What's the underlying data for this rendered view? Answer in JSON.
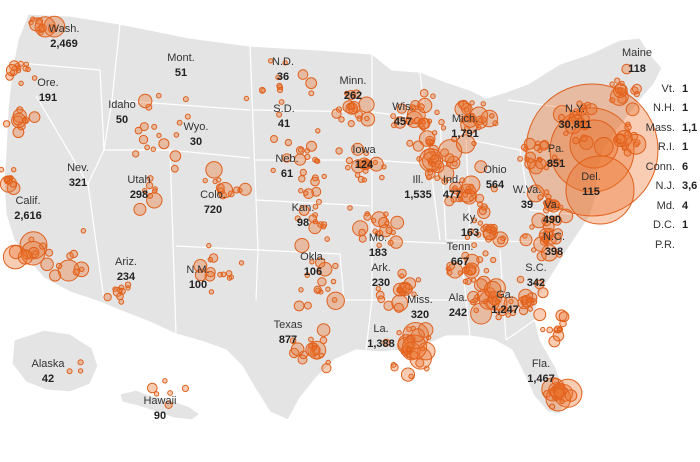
{
  "colors": {
    "land": "#e4e4e4",
    "bubble_fill": "#f07a2e",
    "bubble_stroke": "#e0601c",
    "text": "#222222"
  },
  "states": [
    {
      "id": "wa",
      "name": "Wash.",
      "value": "2,469"
    },
    {
      "id": "or",
      "name": "Ore.",
      "value": "191"
    },
    {
      "id": "ca",
      "name": "Calif.",
      "value": "2,616"
    },
    {
      "id": "nv",
      "name": "Nev.",
      "value": "321"
    },
    {
      "id": "id",
      "name": "Idaho",
      "value": "50"
    },
    {
      "id": "mt",
      "name": "Mont.",
      "value": "51"
    },
    {
      "id": "wy",
      "name": "Wyo.",
      "value": "30"
    },
    {
      "id": "ut",
      "name": "Utah",
      "value": "298"
    },
    {
      "id": "co",
      "name": "Colo.",
      "value": "720"
    },
    {
      "id": "az",
      "name": "Ariz.",
      "value": "234"
    },
    {
      "id": "nm",
      "name": "N.M.",
      "value": "100"
    },
    {
      "id": "nd",
      "name": "N.D.",
      "value": "36"
    },
    {
      "id": "sd",
      "name": "S.D.",
      "value": "41"
    },
    {
      "id": "ne",
      "name": "Neb.",
      "value": "61"
    },
    {
      "id": "ks",
      "name": "Kan.",
      "value": "98"
    },
    {
      "id": "ok",
      "name": "Okla.",
      "value": "106"
    },
    {
      "id": "tx",
      "name": "Texas",
      "value": "877"
    },
    {
      "id": "mn",
      "name": "Minn.",
      "value": "262"
    },
    {
      "id": "ia",
      "name": "Iowa",
      "value": "124"
    },
    {
      "id": "mo",
      "name": "Mo.",
      "value": "183"
    },
    {
      "id": "ar",
      "name": "Ark.",
      "value": "230"
    },
    {
      "id": "la",
      "name": "La.",
      "value": "1,388"
    },
    {
      "id": "wi",
      "name": "Wis.",
      "value": "457"
    },
    {
      "id": "il",
      "name": "Ill.",
      "value": "1,535"
    },
    {
      "id": "mi",
      "name": "Mich.",
      "value": "1,791"
    },
    {
      "id": "in",
      "name": "Ind.",
      "value": "477"
    },
    {
      "id": "oh",
      "name": "Ohio",
      "value": "564"
    },
    {
      "id": "ky",
      "name": "Ky.",
      "value": "163"
    },
    {
      "id": "tn",
      "name": "Tenn.",
      "value": "667"
    },
    {
      "id": "ms",
      "name": "Miss.",
      "value": "320"
    },
    {
      "id": "al",
      "name": "Ala.",
      "value": "242"
    },
    {
      "id": "ga",
      "name": "Ga.",
      "value": "1,247"
    },
    {
      "id": "fl",
      "name": "Fla.",
      "value": "1,467"
    },
    {
      "id": "sc",
      "name": "S.C.",
      "value": "342"
    },
    {
      "id": "nc",
      "name": "N.C.",
      "value": "398"
    },
    {
      "id": "va",
      "name": "Va.",
      "value": "490"
    },
    {
      "id": "wv",
      "name": "W.Va.",
      "value": "39"
    },
    {
      "id": "pa",
      "name": "Pa.",
      "value": "851"
    },
    {
      "id": "ny",
      "name": "N.Y.",
      "value": "30,811"
    },
    {
      "id": "de",
      "name": "Del.",
      "value": "115"
    },
    {
      "id": "me",
      "name": "Maine",
      "value": "118"
    },
    {
      "id": "ak",
      "name": "Alaska",
      "value": "42"
    },
    {
      "id": "hi",
      "name": "Hawaii",
      "value": "90"
    }
  ],
  "sidebar": [
    {
      "id": "vt",
      "name": "Vt.",
      "value": "1"
    },
    {
      "id": "nh",
      "name": "N.H.",
      "value": "1"
    },
    {
      "id": "ma",
      "name": "Mass.",
      "value": "1,1"
    },
    {
      "id": "ri",
      "name": "R.I.",
      "value": "1"
    },
    {
      "id": "ct",
      "name": "Conn.",
      "value": "6"
    },
    {
      "id": "nj",
      "name": "N.J.",
      "value": "3,6"
    },
    {
      "id": "md",
      "name": "Md.",
      "value": "4"
    },
    {
      "id": "dc",
      "name": "D.C.",
      "value": "1"
    },
    {
      "id": "pr",
      "name": "P.R.",
      "value": ""
    }
  ]
}
